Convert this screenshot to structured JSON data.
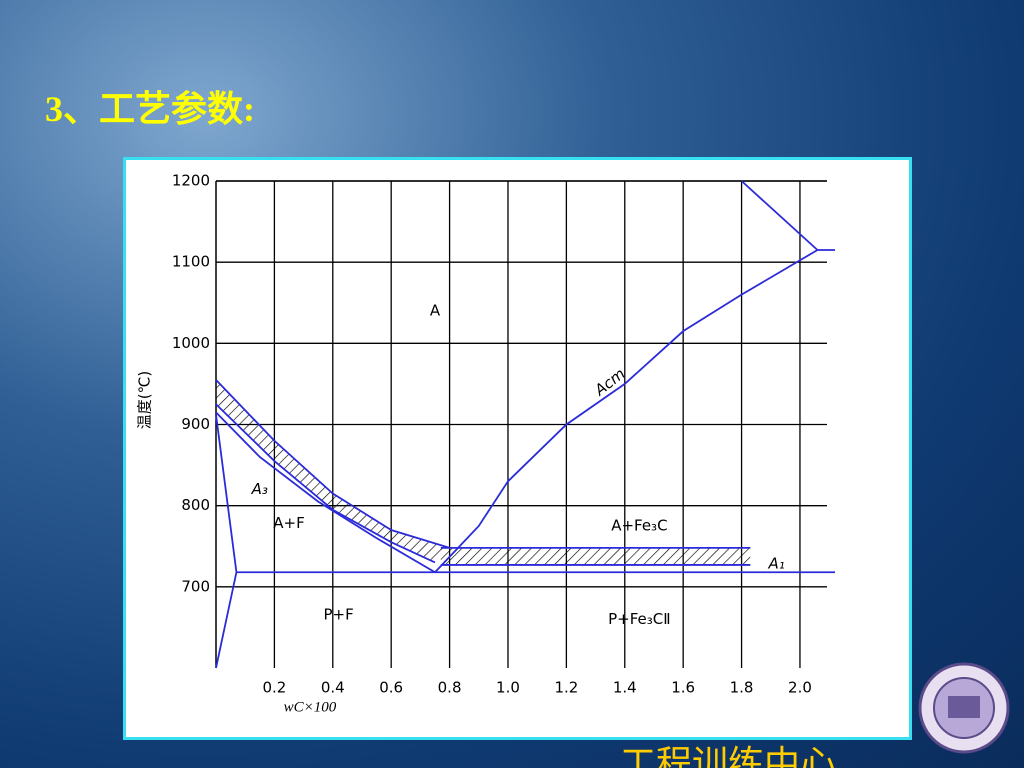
{
  "title": "3、工艺参数:",
  "footer": "工程训练中心",
  "chart_data": {
    "type": "line",
    "xlabel": "wC×100",
    "ylabel": "温度(℃)",
    "xlim": [
      0,
      2.12
    ],
    "ylim": [
      600,
      1200
    ],
    "xticks": [
      0.2,
      0.4,
      0.6,
      0.8,
      {
        "value": 1,
        "label": "1.0"
      },
      1.2,
      1.4,
      1.6,
      1.8,
      {
        "value": 2,
        "label": "2.0"
      }
    ],
    "yticks": [
      700,
      800,
      900,
      1000,
      1100,
      1200
    ],
    "grid": true,
    "series": [
      {
        "name": "A₃",
        "color": "#2b2bd9",
        "x": [
          0,
          0.2,
          0.4,
          0.6,
          0.8
        ],
        "values": [
          955,
          880,
          815,
          770,
          748
        ]
      },
      {
        "color": "#2b2bd9",
        "x": [
          0,
          0.2,
          0.4,
          0.6,
          0.75
        ],
        "values": [
          925,
          855,
          795,
          755,
          730
        ]
      },
      {
        "color": "#2b2bd9",
        "x": [
          0,
          0.15,
          0.35,
          0.55,
          0.75
        ],
        "values": [
          915,
          860,
          805,
          760,
          718
        ]
      },
      {
        "color": "#2b2bd9",
        "x": [
          0,
          0.07,
          0
        ],
        "values": [
          912,
          718,
          600
        ]
      },
      {
        "name": "A₁",
        "color": "#2b2bd9",
        "x": [
          0.07,
          2.12
        ],
        "values": [
          718,
          718
        ]
      },
      {
        "name": "Acm",
        "color": "#2b2bd9",
        "x": [
          0.75,
          0.9,
          1,
          1.2,
          1.4,
          1.6,
          1.8,
          2.06
        ],
        "values": [
          718,
          775,
          830,
          900,
          950,
          1015,
          1060,
          1115
        ]
      },
      {
        "color": "#2b2bd9",
        "x": [
          1.8,
          2.06,
          2.12
        ],
        "values": [
          1200,
          1115,
          1115
        ]
      },
      {
        "color": "#2b2bd9",
        "x": [
          0.77,
          1.83
        ],
        "values": [
          748,
          748
        ]
      },
      {
        "color": "#2b2bd9",
        "x": [
          0.77,
          1.83
        ],
        "values": [
          727,
          727
        ]
      }
    ],
    "annotations": [
      "A",
      "A+F",
      "P+F",
      "A+Fe₃C",
      "P+Fe₃CⅡ"
    ]
  }
}
